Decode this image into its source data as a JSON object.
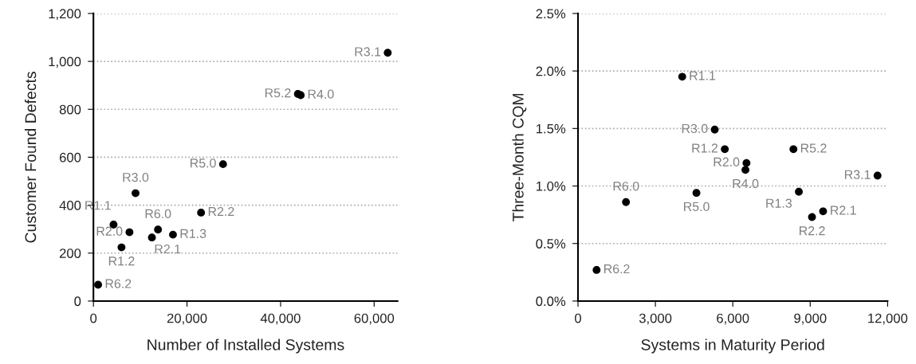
{
  "chart_data": [
    {
      "type": "scatter",
      "xlabel": "Number of Installed Systems",
      "ylabel": "Customer Found Defects",
      "xlim": [
        0,
        65000
      ],
      "xticks": [
        {
          "value": 0,
          "label": "0"
        },
        {
          "value": 20000,
          "label": "20,000"
        },
        {
          "value": 40000,
          "label": "40,000"
        },
        {
          "value": 60000,
          "label": "60,000"
        }
      ],
      "ylim": [
        0,
        1200
      ],
      "yticks": [
        {
          "value": 0,
          "label": "0"
        },
        {
          "value": 200,
          "label": "200"
        },
        {
          "value": 400,
          "label": "400"
        },
        {
          "value": 600,
          "label": "600"
        },
        {
          "value": 800,
          "label": "800"
        },
        {
          "value": 1000,
          "label": "1,000"
        },
        {
          "value": 1200,
          "label": "1,200"
        }
      ],
      "grid": "y",
      "marker": "circle",
      "series": [
        {
          "color": "#000000",
          "x": [
            62900,
            43700,
            44300,
            27700,
            9000,
            23000,
            4300,
            7700,
            13800,
            17000,
            12500,
            6000,
            1000
          ],
          "values": [
            1036,
            864,
            859,
            571,
            450,
            369,
            319,
            287,
            298,
            277,
            265,
            224,
            68
          ]
        }
      ],
      "annotations": [
        {
          "text": "R3.1",
          "x": 62900,
          "y": 1036
        },
        {
          "text": "R5.2",
          "x": 43700,
          "y": 864
        },
        {
          "text": "R4.0",
          "x": 44300,
          "y": 859
        },
        {
          "text": "R5.0",
          "x": 27700,
          "y": 571
        },
        {
          "text": "R3.0",
          "x": 9000,
          "y": 450
        },
        {
          "text": "R2.2",
          "x": 23000,
          "y": 369
        },
        {
          "text": "R1.1",
          "x": 4300,
          "y": 319
        },
        {
          "text": "R2.0",
          "x": 7700,
          "y": 287
        },
        {
          "text": "R6.0",
          "x": 13800,
          "y": 298
        },
        {
          "text": "R1.3",
          "x": 17000,
          "y": 277
        },
        {
          "text": "R2.1",
          "x": 12500,
          "y": 265
        },
        {
          "text": "R1.2",
          "x": 6000,
          "y": 224
        },
        {
          "text": "R6.2",
          "x": 1000,
          "y": 68
        }
      ]
    },
    {
      "type": "scatter",
      "xlabel": "Systems in Maturity Period",
      "ylabel": "Three-Month CQM",
      "xlim": [
        0,
        12000
      ],
      "xticks": [
        {
          "value": 0,
          "label": "0"
        },
        {
          "value": 3000,
          "label": "3,000"
        },
        {
          "value": 6000,
          "label": "6,000"
        },
        {
          "value": 9000,
          "label": "9,000"
        },
        {
          "value": 12000,
          "label": "12,000"
        }
      ],
      "ylim": [
        0,
        2.5
      ],
      "yticks": [
        {
          "value": 0,
          "label": "0.0%"
        },
        {
          "value": 0.5,
          "label": "0.5%"
        },
        {
          "value": 1.0,
          "label": "1.0%"
        },
        {
          "value": 1.5,
          "label": "1.5%"
        },
        {
          "value": 2.0,
          "label": "2.0%"
        },
        {
          "value": 2.5,
          "label": "2.5%"
        }
      ],
      "grid": "y",
      "marker": "circle",
      "series": [
        {
          "color": "#000000",
          "x": [
            4040,
            5300,
            5690,
            8350,
            6530,
            6490,
            11610,
            1860,
            4590,
            8560,
            9500,
            9070,
            720
          ],
          "values": [
            1.95,
            1.49,
            1.32,
            1.32,
            1.2,
            1.14,
            1.09,
            0.86,
            0.94,
            0.95,
            0.78,
            0.73,
            0.27
          ]
        }
      ],
      "annotations": [
        {
          "text": "R1.1",
          "x": 4040,
          "y": 1.95
        },
        {
          "text": "R3.0",
          "x": 5300,
          "y": 1.49
        },
        {
          "text": "R1.2",
          "x": 5690,
          "y": 1.32
        },
        {
          "text": "R5.2",
          "x": 8350,
          "y": 1.32
        },
        {
          "text": "R2.0",
          "x": 6530,
          "y": 1.2
        },
        {
          "text": "R4.0",
          "x": 6490,
          "y": 1.14
        },
        {
          "text": "R3.1",
          "x": 11610,
          "y": 1.09
        },
        {
          "text": "R6.0",
          "x": 1860,
          "y": 0.86
        },
        {
          "text": "R5.0",
          "x": 4590,
          "y": 0.94
        },
        {
          "text": "R1.3",
          "x": 8560,
          "y": 0.95
        },
        {
          "text": "R2.1",
          "x": 9500,
          "y": 0.78
        },
        {
          "text": "R2.2",
          "x": 9070,
          "y": 0.73
        },
        {
          "text": "R6.2",
          "x": 720,
          "y": 0.27
        }
      ]
    }
  ]
}
